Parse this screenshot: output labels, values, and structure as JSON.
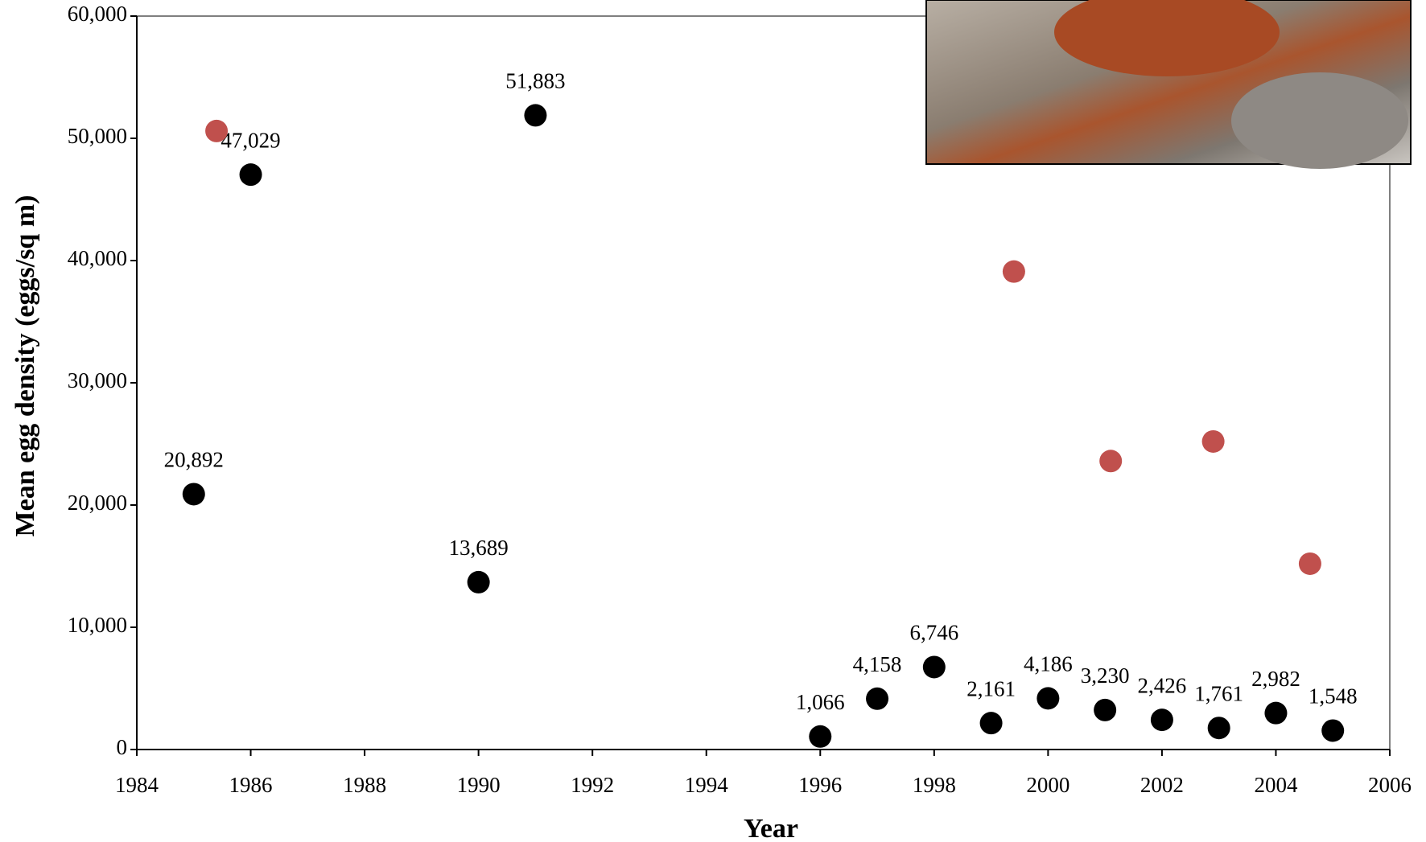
{
  "chart_data": {
    "type": "scatter",
    "x_label": "Year",
    "y_label": "Mean egg density (eggs/sq m)",
    "xlim": [
      1984,
      2006
    ],
    "xticks": [
      1984,
      1986,
      1988,
      1990,
      1992,
      1994,
      1996,
      1998,
      2000,
      2002,
      2004,
      2006
    ],
    "ylim": [
      0,
      60000
    ],
    "yticks": [
      0,
      {
        "value": 10000,
        "label": "10,000"
      },
      {
        "value": 20000,
        "label": "20,000"
      },
      {
        "value": 30000,
        "label": "30,000"
      },
      {
        "value": 40000,
        "label": "40,000"
      },
      {
        "value": 50000,
        "label": "50,000"
      },
      {
        "value": 60000,
        "label": "60,000"
      }
    ],
    "series": [
      {
        "color": "#000000",
        "x": [
          1985,
          1986,
          1990,
          1991,
          1996,
          1997,
          1998,
          1999,
          2000,
          2001,
          2002,
          2003,
          2004,
          2005
        ],
        "values": [
          20892,
          47029,
          13689,
          51883,
          1066,
          4158,
          6746,
          2161,
          4186,
          3230,
          2426,
          1761,
          2982,
          1548
        ],
        "value_labels": [
          "20,892",
          "47,029",
          "13,689",
          "51,883",
          "1,066",
          "4,158",
          "6,746",
          "2,161",
          "4,186",
          "3,230",
          "2,426",
          "1,761",
          "2,982",
          "1,548"
        ]
      },
      {
        "color": "#c0504d",
        "x": [
          1985.4,
          1999.4,
          2001.1,
          2002.9,
          2004.6
        ],
        "values": [
          50600,
          39100,
          23600,
          25200,
          15200
        ]
      }
    ]
  }
}
